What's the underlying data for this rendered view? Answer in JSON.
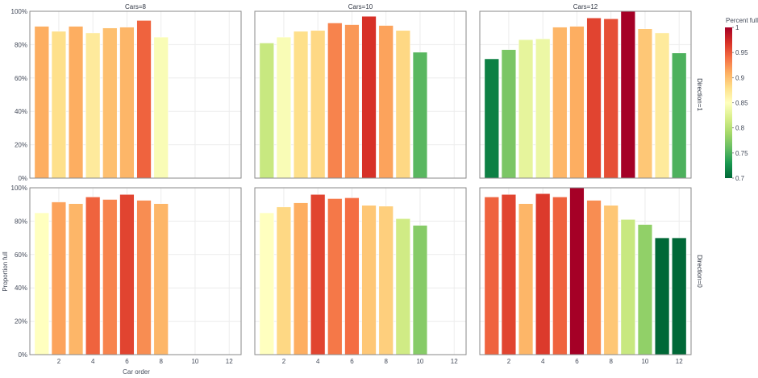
{
  "chart_data": {
    "type": "bar",
    "xlabel": "Car order",
    "ylabel": "Proportion full",
    "ylim": [
      0,
      1
    ],
    "y_ticks": [
      "0%",
      "20%",
      "40%",
      "60%",
      "80%",
      "100%"
    ],
    "x_ticks": [
      "2",
      "4",
      "6",
      "8",
      "10",
      "12"
    ],
    "xlim": [
      0.3,
      12.7
    ],
    "grid": true,
    "colorbar": {
      "title": "Percent full",
      "min": 0.7,
      "max": 1.0,
      "ticks": [
        "1",
        "0.95",
        "0.9",
        "0.85",
        "0.8",
        "0.75",
        "0.7"
      ],
      "colors": [
        "#006837",
        "#1a9850",
        "#66bd63",
        "#a6d96a",
        "#d9ef8b",
        "#ffffbf",
        "#fee08b",
        "#fdae61",
        "#f46d43",
        "#d73027",
        "#a50026"
      ]
    },
    "col_facets": [
      "Cars=8",
      "Cars=10",
      "Cars=12"
    ],
    "row_facets": [
      "Direction=1",
      "Direction=0"
    ],
    "panels": [
      {
        "row": 0,
        "col": 0,
        "x": [
          1,
          2,
          3,
          4,
          5,
          6,
          7,
          8
        ],
        "values": [
          0.91,
          0.88,
          0.91,
          0.87,
          0.9,
          0.905,
          0.945,
          0.845
        ]
      },
      {
        "row": 0,
        "col": 1,
        "x": [
          1,
          2,
          3,
          4,
          5,
          6,
          7,
          8,
          9,
          10
        ],
        "values": [
          0.81,
          0.845,
          0.88,
          0.885,
          0.93,
          0.92,
          0.97,
          0.915,
          0.885,
          0.755
        ]
      },
      {
        "row": 0,
        "col": 2,
        "x": [
          1,
          2,
          3,
          4,
          5,
          6,
          7,
          8,
          9,
          10,
          11,
          12
        ],
        "values": [
          0.715,
          0.77,
          0.83,
          0.835,
          0.905,
          0.91,
          0.96,
          0.955,
          1.0,
          0.895,
          0.87,
          0.75
        ]
      },
      {
        "row": 1,
        "col": 0,
        "x": [
          1,
          2,
          3,
          4,
          5,
          6,
          7,
          8
        ],
        "values": [
          0.85,
          0.915,
          0.905,
          0.945,
          0.93,
          0.96,
          0.925,
          0.905
        ]
      },
      {
        "row": 1,
        "col": 1,
        "x": [
          1,
          2,
          3,
          4,
          5,
          6,
          7,
          8,
          9,
          10
        ],
        "values": [
          0.85,
          0.885,
          0.91,
          0.96,
          0.935,
          0.94,
          0.895,
          0.89,
          0.815,
          0.775
        ]
      },
      {
        "row": 1,
        "col": 2,
        "x": [
          1,
          2,
          3,
          4,
          5,
          6,
          7,
          8,
          9,
          10,
          11,
          12
        ],
        "values": [
          0.945,
          0.96,
          0.905,
          0.965,
          0.945,
          1.0,
          0.925,
          0.895,
          0.81,
          0.78,
          0.7,
          0.7
        ]
      }
    ]
  }
}
